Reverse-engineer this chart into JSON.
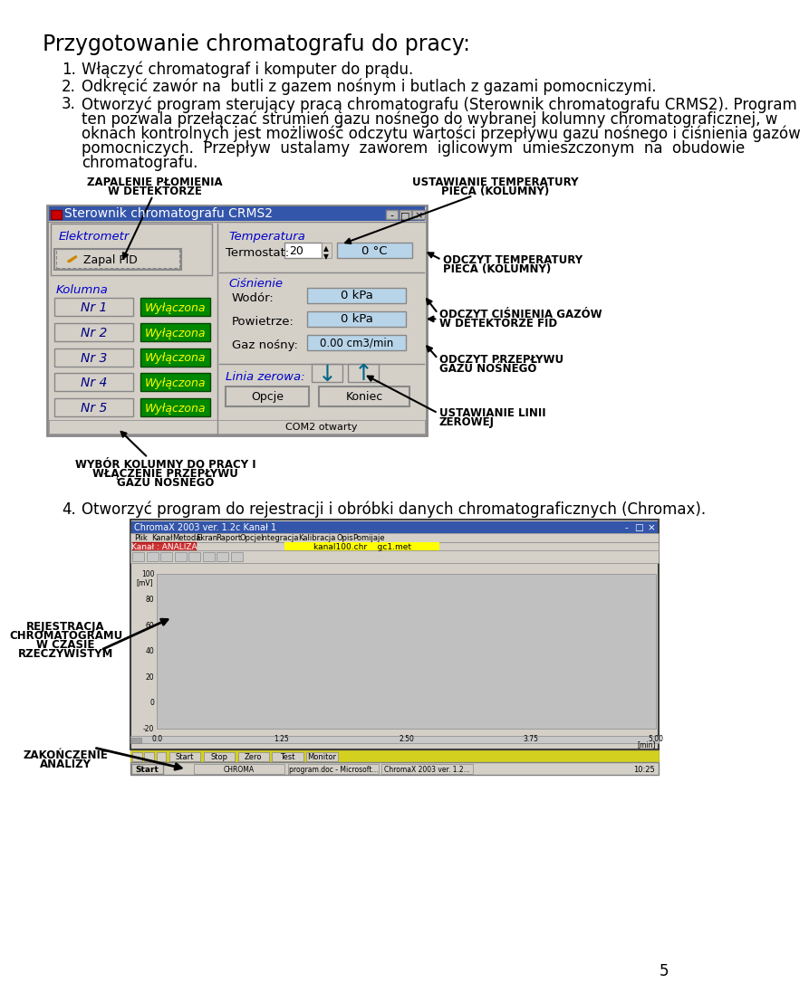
{
  "title": "Przygotowanie chromatografu do pracy:",
  "item1": "Włączyć chromatograf i komputer do prądu.",
  "item2": "Odkręcić zawór na  butli z gazem nośnym i butlach z gazami pomocniczymi.",
  "item3a": "Otworzyć program sterujący pracą chromatografu (Sterownik chromatografu CRMS2). Program",
  "item3b": "ten pozwala przełączać strumień gazu nośnego do wybranej kolumny chromatograficznej, w",
  "item3c": "oknach kontrolnych jest możliwość odczytu wartości przepływu gazu nośnego i ciśnienia gazów",
  "item3d": "pomocniczych.  Przepływ  ustalamy  zaworem  iglicowym  umieszczonym  na  obudowie",
  "item3e": "chromatografu.",
  "item4": "Otworzyć program do rejestracji i obróbki danych chromatograficznych (Chromax).",
  "page_number": "5",
  "background_color": "#ffffff",
  "text_color": "#000000",
  "label_zapalenie1": "ZAPALENIE PŁOMIENIA",
  "label_zapalenie2": "W DETEKTORZE",
  "label_ustawtemp1": "USTAWIANIE TEMPERATURY",
  "label_ustawtemp2": "PIECA (KOLUMNY)",
  "label_odczyttemp1": "ODCZYT TEMPERATURY",
  "label_odczyttemp2": "PIECA (KOLUMNY)",
  "label_odczycisp1": "ODCZYT CIŚNIENIA GAZÓW",
  "label_odczycisp2": "W DETEKTORZE FID",
  "label_odczytprzep1": "ODCZYT PRZEPŁYWU",
  "label_odczytprzep2": "GAZU NOŚNEGO",
  "label_ustawianie1": "USTAWIANIE LINII",
  "label_ustawianie2": "ZEROWEJ",
  "label_wybor1": "WYBÓR KOLUMNY DO PRACY I",
  "label_wybor2": "WŁĄCZENIE PRZEPŁYWU",
  "label_wybor3": "GAZU NOŚNEGO",
  "label_rejestracja1": "REJESTRACJA",
  "label_rejestracja2": "CHROMATOGRAMU",
  "label_rejestracja3": "W CZASIE",
  "label_rejestracja4": "RZECZYWISTYM",
  "label_zakonczenie1": "ZAKOŃCZENIE",
  "label_zakonczenie2": "ANALIZY"
}
